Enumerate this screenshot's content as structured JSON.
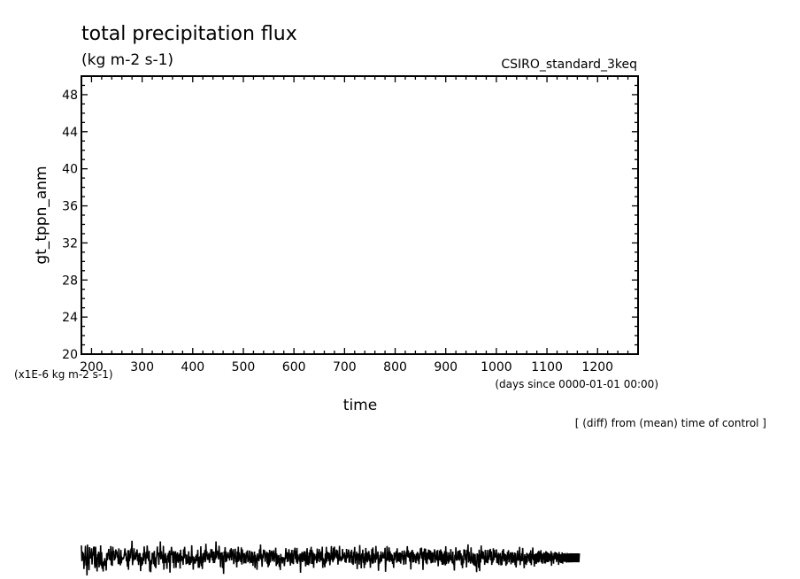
{
  "header": {
    "title": "total precipitation flux",
    "units": "(kg m-2 s-1)",
    "dataset": "CSIRO_standard_3keq"
  },
  "footer": {
    "note": "[ (diff) from (mean) time of control ]"
  },
  "chart_data": {
    "type": "line",
    "title": "total precipitation flux",
    "subtitle": "(kg m-2 s-1)",
    "ylabel": "gt_tppn_anm",
    "xlabel": "time",
    "x_unit_note": "(days since 0000-01-01 00:00)",
    "y_unit_note": "(x1E-6 kg m-2 s-1)",
    "xlim": [
      180,
      1280
    ],
    "ylim": [
      20,
      50
    ],
    "x_ticks": [
      200,
      300,
      400,
      500,
      600,
      700,
      800,
      900,
      1000,
      1100,
      1200
    ],
    "y_ticks": [
      20,
      24,
      28,
      32,
      36,
      40,
      44,
      48
    ],
    "grid": false,
    "series": [
      {
        "x_start": 180,
        "x_step": 1,
        "values": [
          -0.65,
          -2.34,
          -1.31,
          -2.18,
          -1.45,
          -3.19,
          -1.98,
          -2.07,
          -0.69,
          -2.82,
          -1.84,
          -3.88,
          -0.55,
          -2.6,
          -2.3,
          -3.32,
          -0.83,
          -1.96,
          -1.98,
          -1.86,
          -0.95,
          -2.7,
          -1.47,
          -1.75,
          -0.91,
          -0.78,
          -2.61,
          -3.09,
          -0.78,
          -2.94,
          -1.92,
          -3.45,
          -1.57,
          -2.01,
          -1.31,
          -3.01,
          -1.45,
          -2.7,
          -0.64,
          -2.87,
          -1.38,
          -3.17,
          -2.46,
          -3.46,
          -2.33,
          -2.85,
          -2.02,
          -2.81,
          -2.3,
          -3.36,
          -1.48,
          -2.26,
          -1.44,
          -1.76,
          -1.02,
          -2.17,
          -1.63,
          -2.27,
          -0.71,
          -2.77,
          -1.3,
          -2.85,
          -0.78,
          -1.6,
          -1.21,
          -2.26,
          -2.1,
          -1.98,
          -1.07,
          -1.61,
          -1.26,
          -1.96,
          -1.77,
          -2.67,
          -0.96,
          -2.51,
          -2.45,
          -2.79,
          -1.13,
          -2.56,
          -1.96,
          -2.04,
          -2.12,
          -2.07,
          -1.86,
          -1.55,
          -0.97,
          -1.62,
          -1.58,
          -2.36,
          -1.97,
          -2.94,
          -1.17,
          -3.28,
          -1.15,
          -2.34,
          -1.54,
          -2.03,
          -0.98,
          -1.36,
          -0.14,
          -2.77,
          -2.07,
          -2.09,
          -0.95,
          -2.07,
          -1.96,
          -2.17,
          -1.36,
          -1.83,
          -1.07,
          -2.34,
          -1.65,
          -2.76,
          -1.47,
          -2.45,
          -1.48,
          -3.42,
          -1.88,
          -2.84,
          -2.01,
          -2.68,
          -1.47,
          -2.32,
          -0.75,
          -1.74,
          -1.81,
          -2.66,
          -1.34,
          -2.08,
          -0.65,
          -1.54,
          -1.94,
          -2.32,
          -1.23,
          -3.45,
          -2.3,
          -3.54,
          -2.19,
          -2.67,
          -1.44,
          -1.56,
          -1.53,
          -2.67,
          -1.24,
          -2.91,
          -1.93,
          -3.1,
          -2.0,
          -1.73,
          -0.76,
          -1.71,
          -1.42,
          -2.74,
          -1.4,
          -1.94,
          -0.21,
          -2.16,
          -1.28,
          -2.06,
          -1.68,
          -2.57,
          -0.69,
          -3.26,
          -1.62,
          -2.51,
          -1.47,
          -2.55,
          -2.02,
          -3.18,
          -1.8,
          -1.81,
          -1.45,
          -2.51,
          -1.2,
          -3.58,
          -1.71,
          -1.54,
          -0.8,
          -1.69,
          -1.42,
          -2.54,
          -1.25,
          -3.1,
          -1.37,
          -1.73,
          -1.27,
          -3.07,
          -1.54,
          -2.36,
          -1.39,
          -2.52,
          -1.64,
          -2.35,
          -1.51,
          -3.14,
          -1.11,
          -2.37,
          -1.77,
          -2.21,
          -1.89,
          -2.75,
          -1.06,
          -2.05,
          -0.8,
          -1.84,
          -1.62,
          -2.69,
          -1.62,
          -2.6,
          -2.46,
          -2.47,
          -1.27,
          -2.76,
          -1.82,
          -2.72,
          -1.89,
          -2.52,
          -0.63,
          -2.3,
          -1.77,
          -3.26,
          -1.89,
          -2.61,
          -2.09,
          -2.6,
          -1.74,
          -2.38,
          -1.58,
          -2.3,
          -1.11,
          -3.06,
          -1.88,
          -3.06,
          -1.83,
          -2.58,
          -0.74,
          -2.88,
          -1.85,
          -3.19,
          -1.51,
          -2.51,
          -1.43,
          -2.23,
          -1.13,
          -2.44,
          -0.46,
          -1.85,
          -1.28,
          -2.2,
          -1.61,
          -2.21,
          -1.44,
          -2.53,
          -2.08,
          -1.79,
          -1.04,
          -1.95,
          -1.05,
          -2.27,
          -1.28,
          -2.56,
          -1.31,
          -2.54,
          -2.01,
          -2.15,
          -0.21,
          -2.01,
          -1.2,
          -1.62,
          -1.26,
          -2.16,
          -0.68,
          -1.67,
          -1.61,
          -3.0,
          -1.42,
          -2.1,
          -1.38,
          -3.1,
          -1.73,
          -3.72,
          -1.29,
          -1.66,
          -0.83,
          -2.46,
          -1.31,
          -2.36,
          -1.58,
          -1.96,
          -1.38,
          -2.04,
          -1.86,
          -2.27,
          -1.08,
          -1.95,
          -0.94,
          -2.25,
          -1.44,
          -1.38,
          -1.04,
          -2.66,
          -1.53,
          -2.02,
          -1.0,
          -2.47,
          -1.85,
          -3.02,
          -1.3,
          -2.45,
          -0.78,
          -2.34,
          -1.4,
          -2.16,
          -1.69,
          -2.44,
          -0.85,
          -2.71,
          -1.07,
          -1.95,
          -1.48,
          -2.6,
          -1.48,
          -2.52,
          -1.65,
          -2.58,
          -1.34,
          -1.98,
          -1.18,
          -2.44,
          -2.06,
          -2.26,
          -1.19,
          -2.58,
          -1.98,
          -2.47,
          -1.28,
          -2.54,
          -1.37,
          -2.85,
          -1.74,
          -2.37,
          -1.31,
          -3.08,
          -1.66,
          -2.42,
          -1.92,
          -3.27,
          -1.5,
          -2.28,
          -1.71,
          -2.34,
          -1.06,
          -2.04,
          -0.54,
          -2.18,
          -1.56,
          -2.95,
          -1.71,
          -2.03,
          -1.09,
          -1.61,
          -1.17,
          -2.41,
          -1.52,
          -1.9,
          -1.33,
          -2.62,
          -1.41,
          -3.0,
          -1.48,
          -2.79,
          -1.12,
          -2.49,
          -1.36,
          -1.6,
          -1.21,
          -2.37,
          -1.36,
          -2.17,
          -1.17,
          -2.41,
          -1.51,
          -1.96,
          -0.89,
          -2.87,
          -1.52,
          -2.69,
          -1.74,
          -2.53,
          -1.68,
          -2.96,
          -2.0,
          -3.3,
          -1.56,
          -2.26,
          -1.9,
          -2.59,
          -1.9,
          -2.32,
          -1.93,
          -2.88,
          -2.29,
          -1.98,
          -0.94,
          -2.08,
          -1.38,
          -2.44,
          -1.42,
          -2.39,
          -1.05,
          -1.65,
          -1.74,
          -2.82,
          -1.45,
          -2.51,
          -1.12,
          -2.58,
          -1.57,
          -2.67,
          -1.15,
          -1.54,
          -0.89,
          -2.13,
          -1.23,
          -2.48,
          -0.91,
          -2.63,
          -1.63,
          -2.12,
          -1.94,
          -2.4,
          -1.52,
          -3.6,
          -1.54,
          -2.31,
          -1.35,
          -2.45,
          -1.44,
          -2.24,
          -1.27,
          -2.35,
          -1.27,
          -2.9,
          -2.61,
          -1.77,
          -0.94,
          -2.74,
          -1.77,
          -2.78,
          -1.4,
          -2.59,
          -1.11,
          -1.62,
          -0.8,
          -2.64,
          -1.15,
          -2.65,
          -1.41,
          -3.07,
          -1.53,
          -2.27,
          -1.8,
          -2.1,
          -1.56,
          -2.57,
          -0.98,
          -2.38,
          -1.36,
          -2.06,
          -1.03,
          -2.45,
          -1.43,
          -2.25,
          -1.27,
          -2.31,
          -0.78,
          -3.07,
          -2.0,
          -2.69,
          -2.14,
          -3.01,
          -1.51,
          -2.59,
          -0.79,
          -2.4,
          -1.3,
          -2.08,
          -1.4,
          -2.34,
          -1.45,
          -2.78,
          -2.04,
          -1.86,
          -0.71,
          -2.24,
          -1.4,
          -2.47,
          -0.89,
          -2.25,
          -0.77,
          -2.01,
          -1.48,
          -1.81,
          -1.09,
          -2.04,
          -1.18,
          -2.72,
          -1.58,
          -2.33,
          -0.69,
          -2.16,
          -2.03,
          -2.37,
          -2.09,
          -2.25,
          -1.02,
          -2.09,
          -1.79,
          -1.92,
          -1.41,
          -2.46,
          -1.69,
          -2.52,
          -1.02,
          -2.04,
          -1.43,
          -1.91,
          -1.08,
          -2.51,
          -1.67,
          -2.51,
          -1.32,
          -1.97,
          -1.11,
          -2.61,
          -1.79,
          -2.75,
          -1.33,
          -1.91,
          -0.81,
          -2.6,
          -1.6,
          -2.25,
          -1.32,
          -3.2,
          -1.53,
          -1.97,
          -1.49,
          -2.71,
          -0.6,
          -2.3,
          -1.68,
          -3.12,
          -1.51,
          -2.11,
          -1.1,
          -2.53,
          -1.83,
          -3.1,
          -1.5,
          -2.71,
          -0.91,
          -2.34,
          -1.34,
          -2.47,
          -1.47,
          -2.2,
          -1.25,
          -2.35,
          -1.65,
          -3.06,
          -2.03,
          -2.38,
          -1.03,
          -2.62,
          -0.87,
          -2.58,
          -1.52,
          -2.11,
          -1.71,
          -2.51,
          -0.7,
          -2.17,
          -1.69,
          -1.87,
          -1.3,
          -3.38,
          -2.04,
          -2.63,
          -1.67,
          -2.47,
          -1.28,
          -2.37,
          -1.64,
          -2.02,
          -1.37,
          -1.94,
          -1.9,
          -2.04,
          -0.9,
          -3.49,
          -2.11,
          -2.31,
          -0.71,
          -2.31,
          -1.37,
          -2.24,
          -0.86,
          -2.44,
          -1.27,
          -2.26,
          -1.51,
          -2.39,
          -1.64,
          -2.64,
          -2.06,
          -3.07,
          -1.4,
          -2.24,
          -1.51,
          -1.65,
          -1.27,
          -2.51,
          -0.95,
          -2.39,
          -1.53,
          -2.35,
          -1.4,
          -2.43,
          -1.42,
          -2.6,
          -1.51,
          -1.71,
          -1.23,
          -2.22,
          -1.69,
          -2.74,
          -1.19,
          -2.1,
          -1.64,
          -2.69,
          -1.35,
          -1.79,
          -0.73,
          -1.91,
          -1.18,
          -1.97,
          -1.49,
          -2.4,
          -1.4,
          -3.24,
          -1.27,
          -1.83,
          -1.12,
          -2.48,
          -1.38,
          -2.45,
          -1.59,
          -1.87,
          -1.87,
          -2.56,
          -1.52,
          -2.13,
          -1.35,
          -2.33,
          -1.48,
          -2.68,
          -1.83,
          -2.05,
          -0.95,
          -1.68,
          -0.88,
          -2.08,
          -1.39,
          -3.29,
          -1.3,
          -1.89,
          -0.98,
          -2.26,
          -1.0,
          -2.56,
          -1.44,
          -2.69,
          -1.42,
          -2.15,
          -1.09,
          -2.1,
          -1.14,
          -2.25,
          -1.21,
          -2.57,
          -1.42,
          -2.51,
          -1.38,
          -2.5,
          -1.53,
          -1.71,
          -1.06,
          -2.51,
          -1.71,
          -2.15,
          -1.24,
          -2.29,
          -1.13,
          -2.89,
          -1.8,
          -2.23,
          -1.19,
          -2.26,
          -1.07,
          -2.43,
          -1.3,
          -2.73,
          -1.62,
          -2.73,
          -1.48,
          -2.6,
          -1.25,
          -2.81,
          -0.74,
          -2.66,
          -1.34,
          -2.33,
          -1.78,
          -2.61,
          -1.39,
          -2.42,
          -1.69,
          -2.2,
          -1.03,
          -2.27,
          -2.03,
          -2.56,
          -1.31,
          -2.69,
          -2.45,
          -3.36,
          -1.65,
          -2.11,
          -0.84,
          -2.29,
          -1.84,
          -2.26,
          -1.26,
          -2.13,
          -1.22,
          -2.29,
          -1.14,
          -2.1,
          -1.5,
          -2.77,
          -1.73,
          -3.11,
          -2.07,
          -2.58,
          -1.06,
          -1.81,
          -1.12,
          -2.24,
          -1.56,
          -3.02,
          -1.12,
          -1.51,
          -0.53,
          -2.5,
          -1.33,
          -2.35,
          -1.84,
          -2.61,
          -0.85,
          -2.38,
          -1.86,
          -2.58,
          -1.46,
          -2.75,
          -1.6,
          -2.84,
          -1.56,
          -2.9,
          -2.31,
          -3.52,
          -1.51,
          -2.06,
          -1.62,
          -3.07,
          -1.11,
          -3.42,
          -1.55,
          -2.49,
          -0.65,
          -2.05,
          -1.24,
          -2.13,
          -1.32,
          -2.14,
          -1.76,
          -2.74,
          -1.13,
          -2.47,
          -1.91,
          -2.52,
          -1.13,
          -2.57,
          -1.76,
          -2.18,
          -1.13,
          -1.89,
          -1.01,
          -2.26,
          -1.28,
          -2.75,
          -2.01,
          -2.48,
          -0.95,
          -2.25,
          -1.12,
          -1.91,
          -1.57,
          -1.96,
          -1.07,
          -2.55,
          -1.64,
          -2.59,
          -1.44,
          -2.76,
          -1.57,
          -1.89,
          -1.46,
          -2.79,
          -1.81,
          -2.76,
          -1.19,
          -2.1,
          -1.03,
          -2.38,
          -1.51,
          -2.29,
          -1.6,
          -2.84,
          -1.71,
          -2.67,
          -1.34,
          -2.17,
          -1.15,
          -2.47,
          -1.61,
          -2.0,
          -1.39,
          -2.69,
          -1.43,
          -2.47,
          -1.38,
          -2.53,
          -1.71,
          -2.4,
          -1.4,
          -2.77,
          -1.47,
          -3.02,
          -2.13,
          -2.07,
          -1.19,
          -2.3,
          -1.61,
          -2.25,
          -0.8,
          -2.77,
          -1.76,
          -2.36,
          -1.48,
          -2.35,
          -0.91,
          -2.13,
          -2.01,
          -3.11,
          -1.6,
          -2.62,
          -1.79,
          -2.75,
          -1.45,
          -2.48,
          -1.54,
          -1.91,
          -1.63,
          -2.36,
          -1.44,
          -2.54,
          -1.16,
          -2.77,
          -1.55,
          -2.09,
          -0.87,
          -2.23,
          -1.61,
          -2.93,
          -1.59,
          -2.62,
          -1.51,
          -2.63,
          -1.5,
          -2.44,
          -1.35,
          -2.49,
          -1.23,
          -2.41,
          -1.36,
          -2.14,
          -1.15,
          -2.49,
          -1.51,
          -2.61,
          -1.58,
          -2.17,
          -1.39,
          -2.58,
          -1.48,
          -2.59,
          -1.26,
          -2.41,
          -1.36,
          -2.45,
          -1.44,
          -2.44,
          -1.5,
          -2.25,
          -1.62,
          -2.36,
          -1.25,
          -2.84,
          -1.45,
          -2.26,
          -1.75,
          -2.61,
          -1.46,
          -2.16,
          -1.35,
          -2.11,
          -1.41,
          -2.43,
          -1.47,
          -2.23,
          -1.58,
          -2.75,
          -1.36,
          -2.44,
          -1.58,
          -2.53,
          -1.61,
          -2.55,
          -1.39,
          -2.61,
          -1.54,
          -2.38,
          -1.5,
          -2.42,
          -1.48,
          -2.41,
          -1.57,
          -2.51,
          -1.47,
          -2.44,
          -1.52,
          -2.48,
          -1.5,
          -2.46,
          -1.51,
          -2.47,
          -1.49,
          -2.47,
          -1.5,
          -2.46,
          -1.5,
          -2.46,
          -1.5,
          -2.46,
          -1.5,
          -2.46,
          -1.5,
          -2.46,
          -1.5,
          -2.46,
          -1.5,
          -2.46,
          -1.5
        ]
      }
    ]
  }
}
